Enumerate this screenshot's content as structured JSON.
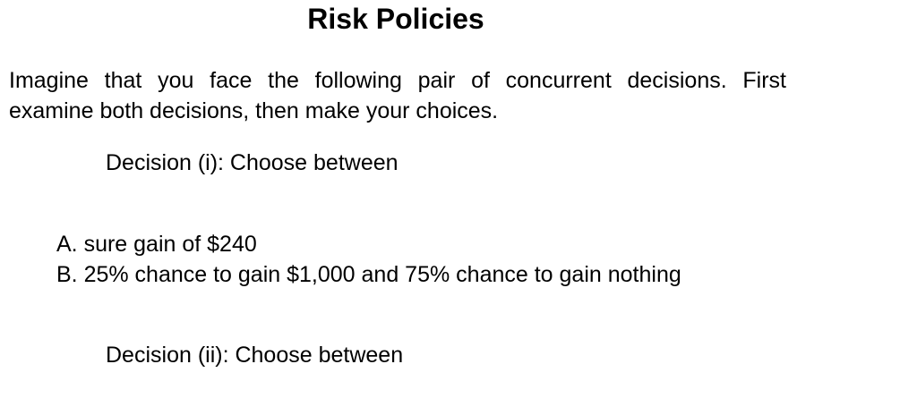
{
  "title": "Risk Policies",
  "intro": {
    "line1": "Imagine that you face the following pair of concurrent decisions. First",
    "line2": "examine both decisions, then make your choices."
  },
  "decision1": {
    "heading": "Decision (i): Choose between",
    "options": [
      "A. sure gain of $240",
      "B. 25% chance to gain $1,000 and 75% chance to gain nothing"
    ]
  },
  "decision2": {
    "heading": "Decision (ii): Choose between"
  }
}
